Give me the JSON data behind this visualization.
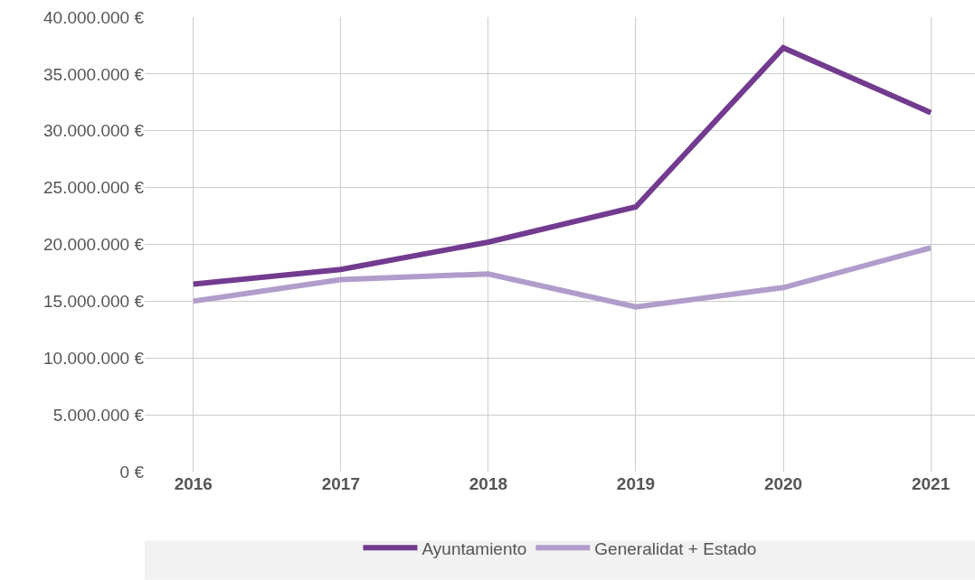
{
  "chart_data": {
    "type": "line",
    "categories": [
      "2016",
      "2017",
      "2018",
      "2019",
      "2020",
      "2021"
    ],
    "series": [
      {
        "name": "Ayuntamiento",
        "color": "#723b8f",
        "values": [
          16500000,
          17800000,
          20200000,
          23300000,
          37300000,
          31600000
        ]
      },
      {
        "name": "Generalidat + Estado",
        "color": "#b19dcb",
        "values": [
          15000000,
          16900000,
          17400000,
          14500000,
          16200000,
          19700000
        ]
      }
    ],
    "ylim": [
      0,
      40000000
    ],
    "yticks": [
      {
        "value": 0,
        "label": "0 €"
      },
      {
        "value": 5000000,
        "label": "5.000.000 €"
      },
      {
        "value": 10000000,
        "label": "10.000.000 €"
      },
      {
        "value": 15000000,
        "label": "15.000.000 €"
      },
      {
        "value": 20000000,
        "label": "20.000.000 €"
      },
      {
        "value": 25000000,
        "label": "25.000.000 €"
      },
      {
        "value": 30000000,
        "label": "30.000.000 €"
      },
      {
        "value": 35000000,
        "label": "35.000.000 €"
      },
      {
        "value": 40000000,
        "label": "40.000.000 €"
      }
    ],
    "grid": true,
    "legend": "bottom",
    "marker": "none",
    "line_style": "solid"
  }
}
